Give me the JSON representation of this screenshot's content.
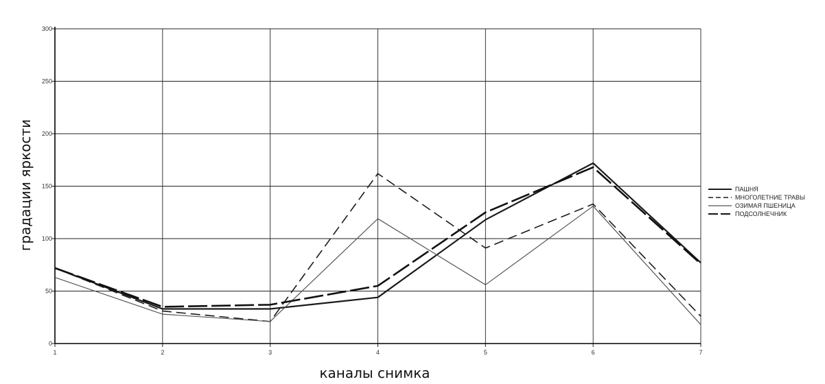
{
  "chart_data": {
    "type": "line",
    "title": "",
    "xlabel": "каналы снимка",
    "ylabel": "градации яркости",
    "categories": [
      "1",
      "2",
      "3",
      "4",
      "5",
      "6",
      "7"
    ],
    "xlim": [
      1,
      7
    ],
    "ylim": [
      0,
      300
    ],
    "yticks": [
      0,
      50,
      100,
      150,
      200,
      250,
      300
    ],
    "grid": true,
    "legend_position": "right",
    "series": [
      {
        "name": "ПАШНЯ",
        "style": "solid-thick",
        "color": "#1a1a1a",
        "values": [
          72,
          33,
          33,
          44,
          118,
          172,
          77
        ]
      },
      {
        "name": "МНОГОЛЕТНИЕ ТРАВЫ",
        "style": "dashed",
        "color": "#1a1a1a",
        "values": [
          72,
          31,
          21,
          162,
          91,
          133,
          26
        ]
      },
      {
        "name": "ОЗИМАЯ ПШЕНИЦА",
        "style": "solid-thin",
        "color": "#555555",
        "values": [
          63,
          28,
          21,
          119,
          56,
          131,
          18
        ]
      },
      {
        "name": "ПОДСОЛНЕЧНИК",
        "style": "long-dash",
        "color": "#111111",
        "values": [
          72,
          35,
          37,
          55,
          125,
          168,
          76
        ]
      }
    ]
  }
}
